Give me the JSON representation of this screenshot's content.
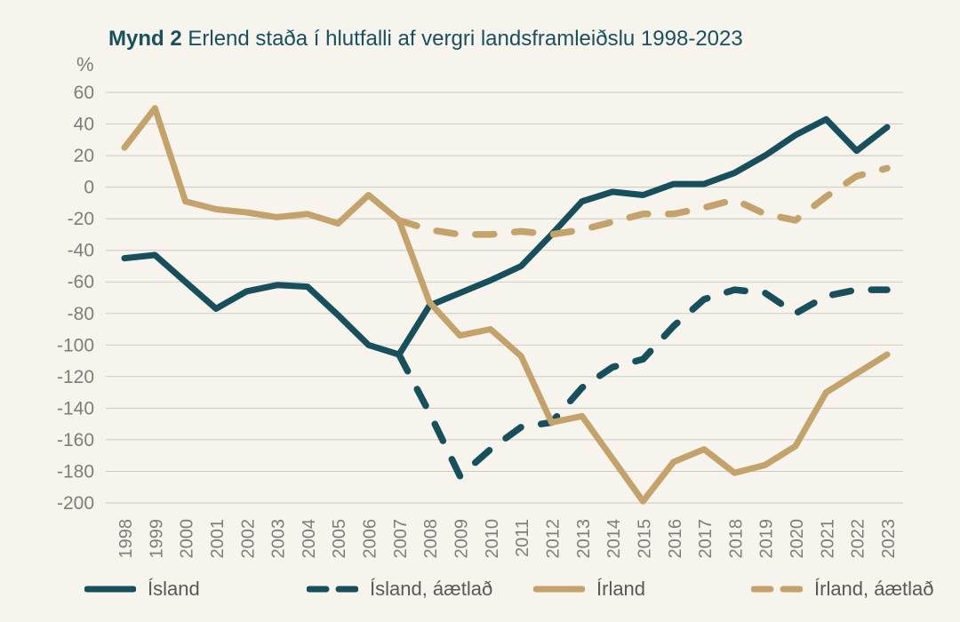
{
  "figure": {
    "title_prefix": "Mynd 2",
    "title_rest": " Erlend staða í hlutfalli af vergri landsframleiðslu 1998-2023",
    "y_unit_label": "%"
  },
  "colors": {
    "background": "#f6f4ec",
    "iceland": "#174f5d",
    "ireland": "#c4a26b",
    "grid": "#cbc9c2",
    "axis_text": "#7d7d7b",
    "title_text": "#19505e",
    "legend_text": "#595959"
  },
  "chart_data": {
    "type": "line",
    "title": "Mynd 2 Erlend staða í hlutfalli af vergri landsframleiðslu 1998-2023",
    "ylabel": "%",
    "ylim": [
      -200,
      60
    ],
    "ytick_step": 20,
    "grid": true,
    "legend_position": "bottom",
    "x": [
      1998,
      1999,
      2000,
      2001,
      2002,
      2003,
      2004,
      2005,
      2006,
      2007,
      2008,
      2009,
      2010,
      2011,
      2012,
      2013,
      2014,
      2015,
      2016,
      2017,
      2018,
      2019,
      2020,
      2021,
      2022,
      2023
    ],
    "series": [
      {
        "name": "Ísland",
        "slug": "island",
        "style": "solid",
        "color_key": "iceland",
        "values": [
          -45,
          -43,
          -60,
          -77,
          -66,
          -62,
          -63,
          -81,
          -100,
          -106,
          -75,
          -67,
          -59,
          -50,
          -30,
          -9,
          -3,
          -5,
          2,
          2,
          9,
          20,
          33,
          43,
          23,
          38
        ]
      },
      {
        "name": "Ísland, áætlað",
        "slug": "island-aaetlad",
        "style": "dashed",
        "color_key": "iceland",
        "values": [
          null,
          null,
          null,
          null,
          null,
          null,
          null,
          null,
          null,
          -106,
          -143,
          -183,
          -166,
          -152,
          -149,
          -127,
          -114,
          -109,
          -88,
          -71,
          -65,
          -67,
          -80,
          -69,
          -65,
          -65
        ]
      },
      {
        "name": "Írland",
        "slug": "irland",
        "style": "solid",
        "color_key": "ireland",
        "values": [
          25,
          50,
          -9,
          -14,
          -16,
          -19,
          -17,
          -23,
          -5,
          -21,
          -73,
          -94,
          -90,
          -107,
          -149,
          -145,
          -172,
          -199,
          -174,
          -166,
          -181,
          -176,
          -164,
          -130,
          -118,
          -106
        ]
      },
      {
        "name": "Írland, áætlað",
        "slug": "irland-aaetlad",
        "style": "dashed",
        "color_key": "ireland",
        "values": [
          null,
          null,
          null,
          null,
          null,
          null,
          null,
          null,
          null,
          -21,
          -27,
          -30,
          -30,
          -28,
          -30,
          -27,
          -22,
          -17,
          -17,
          -13,
          -8,
          -17,
          -21,
          -6,
          7,
          12
        ]
      }
    ]
  },
  "legend": {
    "items": [
      {
        "label": "Ísland",
        "style": "solid",
        "color_key": "iceland"
      },
      {
        "label": "Ísland, áætlað",
        "style": "dashed",
        "color_key": "iceland"
      },
      {
        "label": "Írland",
        "style": "solid",
        "color_key": "ireland"
      },
      {
        "label": "Írland, áætlað",
        "style": "dashed",
        "color_key": "ireland"
      }
    ]
  }
}
